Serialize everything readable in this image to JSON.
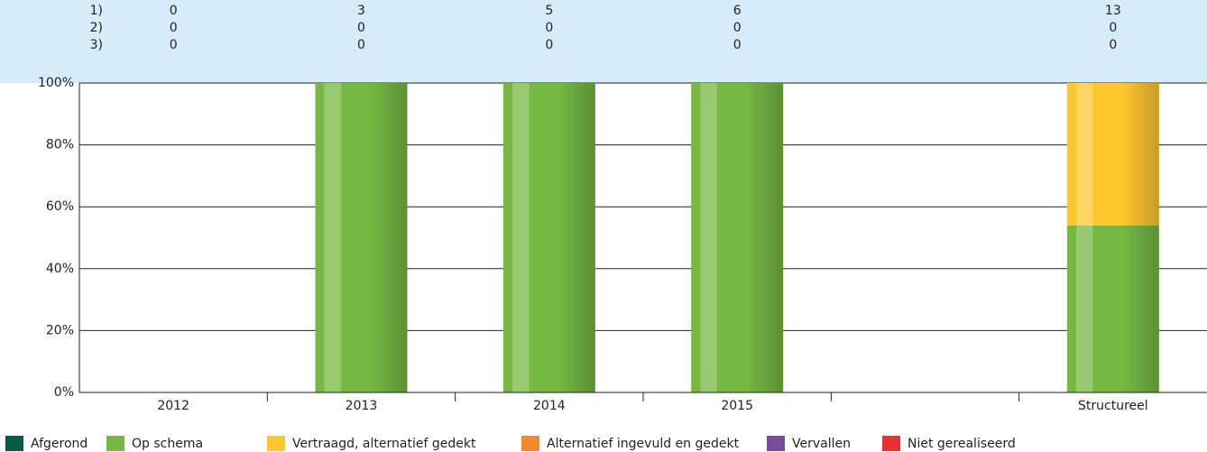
{
  "chart_data": {
    "type": "stacked-bar",
    "categories": [
      "2012",
      "2013",
      "2014",
      "2015",
      null,
      "Structureel"
    ],
    "header_rows": [
      {
        "label": "1)",
        "values": [
          0,
          3,
          5,
          6,
          null,
          13
        ]
      },
      {
        "label": "2)",
        "values": [
          0,
          0,
          0,
          0,
          null,
          0
        ]
      },
      {
        "label": "3)",
        "values": [
          0,
          0,
          0,
          0,
          null,
          0
        ]
      }
    ],
    "series": [
      {
        "name": "Afgerond",
        "color": "#0b5a44",
        "values": [
          0,
          0,
          0,
          0,
          null,
          0
        ]
      },
      {
        "name": "Op schema",
        "color": "#76b843",
        "values": [
          0,
          100,
          100,
          100,
          null,
          54
        ]
      },
      {
        "name": "Vertraagd, alternatief gedekt",
        "color": "#fdc82f",
        "values": [
          0,
          0,
          0,
          0,
          null,
          46
        ]
      },
      {
        "name": "Alternatief ingevuld en gedekt",
        "color": "#f18a2a",
        "values": [
          0,
          0,
          0,
          0,
          null,
          0
        ]
      },
      {
        "name": "Vervallen",
        "color": "#7b4b9d",
        "values": [
          0,
          0,
          0,
          0,
          null,
          0
        ]
      },
      {
        "name": "Niet gerealiseerd",
        "color": "#e8302c",
        "values": [
          0,
          0,
          0,
          0,
          null,
          0
        ]
      }
    ],
    "ylim": [
      0,
      100
    ],
    "yticks": [
      {
        "value": 0,
        "label": "0%"
      },
      {
        "value": 20,
        "label": "20%"
      },
      {
        "value": 40,
        "label": "40%"
      },
      {
        "value": 60,
        "label": "60%"
      },
      {
        "value": 80,
        "label": "80%"
      },
      {
        "value": 100,
        "label": "100%"
      }
    ],
    "grid": true
  }
}
